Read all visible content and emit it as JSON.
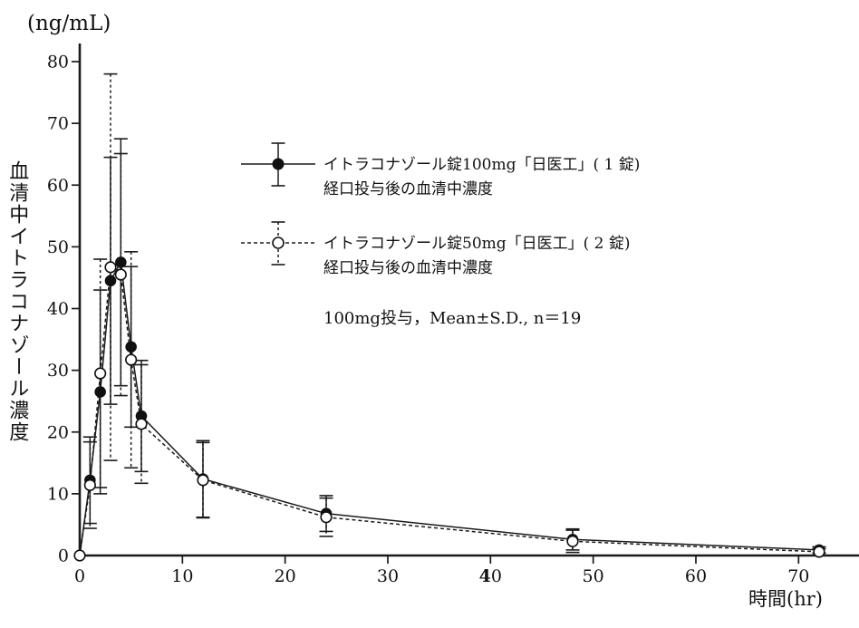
{
  "unit_label": "(ng/mL)",
  "x_axis_label": "時間(hr)",
  "y_axis_label": "血清中イトラコナゾール濃度",
  "note": "100mg投与，Mean±S.D., n＝19",
  "legend": {
    "entries": [
      {
        "marker": "filled-circle",
        "line": "solid",
        "line1": "イトラコナゾール錠100mg「日医工」( 1 錠)",
        "line2": "経口投与後の血清中濃度"
      },
      {
        "marker": "open-circle",
        "line": "dashed",
        "line1": "イトラコナゾール錠50mg「日医工」( 2 錠)",
        "line2": "経口投与後の血清中濃度"
      }
    ]
  },
  "colors": {
    "ink": "#1a1a1a",
    "background": "#ffffff"
  },
  "chart_data": {
    "type": "line",
    "title": "",
    "xlabel": "時間(hr)",
    "ylabel": "血清中イトラコナゾール濃度",
    "y_unit": "(ng/mL)",
    "xlim": [
      0,
      76
    ],
    "ylim": [
      0,
      80
    ],
    "grid": false,
    "legend_position": "upper-right-inside",
    "y_ticks": [
      0,
      10,
      20,
      30,
      40,
      50,
      60,
      70,
      80
    ],
    "x_ticks": [
      {
        "t": 0,
        "label": "0"
      },
      {
        "t": 10,
        "label": "10"
      },
      {
        "t": 20,
        "label": "20"
      },
      {
        "t": 30,
        "label": "30"
      },
      {
        "t": 40,
        "label": "40",
        "bold_first": true
      },
      {
        "t": 50,
        "label": "50"
      },
      {
        "t": 60,
        "label": "60"
      },
      {
        "t": 70,
        "label": "70"
      }
    ],
    "x": [
      0,
      1,
      2,
      3,
      4,
      5,
      6,
      12,
      24,
      48,
      72
    ],
    "series": [
      {
        "name": "イトラコナゾール錠100mg「日医工」(1錠)経口投与後の血清中濃度",
        "marker": "filled",
        "line": "solid",
        "values": [
          0,
          12.2,
          26.5,
          44.5,
          47.5,
          33.8,
          22.6,
          12.4,
          6.8,
          2.6,
          0.9
        ],
        "sd": [
          0,
          7.0,
          16.5,
          20.0,
          20.0,
          13.0,
          9.0,
          6.2,
          2.9,
          1.7,
          0.5
        ]
      },
      {
        "name": "イトラコナゾール錠50mg「日医工」(2錠)経口投与後の血清中濃度",
        "marker": "open",
        "line": "dashed",
        "values": [
          0,
          11.4,
          29.5,
          46.7,
          45.5,
          31.7,
          21.3,
          12.2,
          6.2,
          2.3,
          0.6
        ],
        "sd": [
          0,
          7.0,
          18.5,
          31.3,
          19.6,
          17.5,
          9.6,
          6.1,
          3.1,
          1.8,
          0.5
        ]
      }
    ]
  }
}
